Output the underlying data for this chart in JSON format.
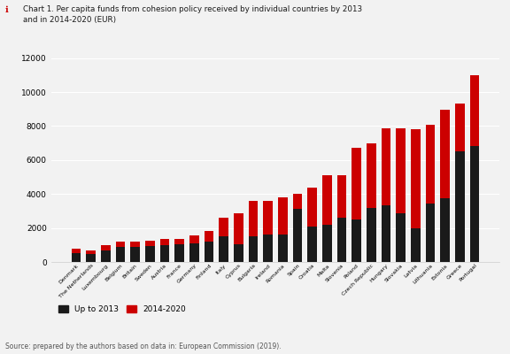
{
  "countries": [
    "Denmark",
    "The Netherlands",
    "Luxembourg",
    "Belgium",
    "Britain",
    "Sweden",
    "Austria",
    "France",
    "Germany",
    "Finland",
    "Italy",
    "Cyprus",
    "Bulgaria",
    "Ireland",
    "Romania",
    "Spain",
    "Croatia",
    "Malta",
    "Slovenia",
    "Poland",
    "Czech Republic",
    "Hungary",
    "Slovakia",
    "Latvia",
    "Lithuania",
    "Estonia",
    "Greece",
    "Portugal"
  ],
  "upto2013": [
    500,
    450,
    700,
    900,
    900,
    950,
    1000,
    1050,
    1100,
    1200,
    1500,
    1050,
    1500,
    1600,
    1600,
    3100,
    2100,
    2200,
    2600,
    2500,
    3200,
    3350,
    2850,
    2000,
    3450,
    3750,
    6500,
    6800
  ],
  "period2014_2020": [
    300,
    250,
    300,
    300,
    300,
    300,
    350,
    300,
    450,
    600,
    1100,
    1800,
    2100,
    2000,
    2200,
    900,
    2300,
    2900,
    2500,
    4200,
    3800,
    4500,
    5000,
    5800,
    4600,
    5200,
    2800,
    4200
  ],
  "color_2013": "#1a1a1a",
  "color_2014": "#cc0000",
  "title_line1": "Chart 1. Per capita funds from cohesion policy received by individual countries by 2013",
  "title_line2": "and in 2014-2020 (EUR)",
  "ylabel": "",
  "ylim": [
    0,
    12500
  ],
  "yticks": [
    0,
    2000,
    4000,
    6000,
    8000,
    10000,
    12000
  ],
  "source_text": "Source: prepared by the authors based on data in: European Commission (2019).",
  "legend_2013": "Up to 2013",
  "legend_2014": "2014-2020",
  "bg_color": "#f2f2f2",
  "title_arrow_color": "#cc0000",
  "title_color": "#1a1a1a",
  "grid_color": "#ffffff",
  "axis_color": "#cccccc"
}
